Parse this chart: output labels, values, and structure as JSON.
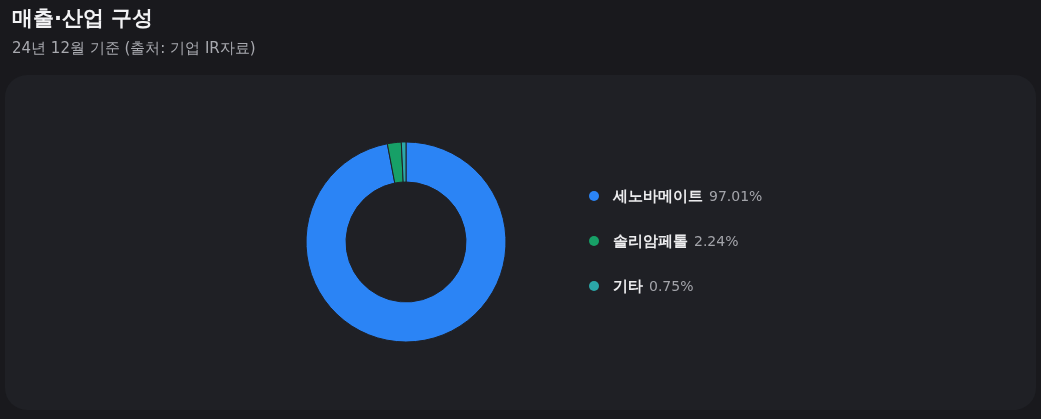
{
  "chart_data": {
    "type": "donut",
    "title": "매출·산업 구성",
    "subtitle": "24년 12월 기준 (출처: 기업 IR자료)",
    "categories": [
      "세노바메이트",
      "솔리암페톨",
      "기타"
    ],
    "values": [
      97.01,
      2.24,
      0.75
    ],
    "colors": [
      "#2b84f5",
      "#17a067",
      "#2ba7a9"
    ],
    "value_labels": [
      "97.01%",
      "2.24%",
      "0.75%"
    ],
    "legend": "right"
  }
}
